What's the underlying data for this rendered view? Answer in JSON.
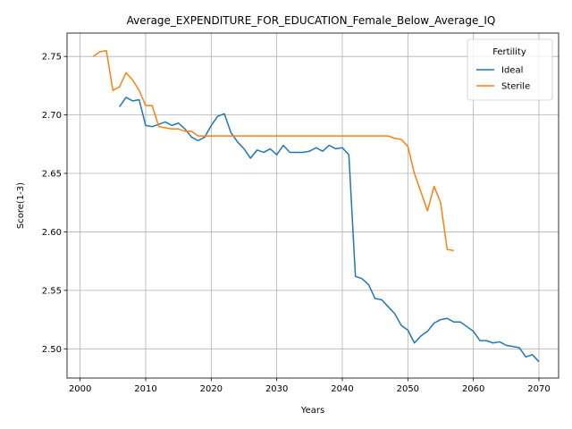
{
  "chart_data": {
    "type": "line",
    "title": "Average_EXPENDITURE_FOR_EDUCATION_Female_Below_Average_IQ",
    "xlabel": "Years",
    "ylabel": "Score(1-3)",
    "xlim": [
      1998,
      2073
    ],
    "ylim": [
      2.475,
      2.77
    ],
    "xticks": [
      2000,
      2010,
      2020,
      2030,
      2040,
      2050,
      2060,
      2070
    ],
    "yticks": [
      2.5,
      2.55,
      2.6,
      2.65,
      2.7,
      2.75
    ],
    "grid": true,
    "legend": {
      "title": "Fertility",
      "placement": "top-right"
    },
    "series": [
      {
        "name": "Ideal",
        "color": "#1f77b4",
        "x": [
          2006,
          2007,
          2008,
          2009,
          2010,
          2011,
          2012,
          2013,
          2014,
          2015,
          2016,
          2017,
          2018,
          2019,
          2020,
          2021,
          2022,
          2023,
          2024,
          2025,
          2026,
          2027,
          2028,
          2029,
          2030,
          2031,
          2032,
          2033,
          2034,
          2035,
          2036,
          2037,
          2038,
          2039,
          2040,
          2041,
          2042,
          2043,
          2044,
          2045,
          2046,
          2047,
          2048,
          2049,
          2050,
          2051,
          2052,
          2053,
          2054,
          2055,
          2056,
          2057,
          2058,
          2059,
          2060,
          2061,
          2062,
          2063,
          2064,
          2065,
          2066,
          2067,
          2068,
          2069,
          2070
        ],
        "y": [
          2.707,
          2.715,
          2.712,
          2.713,
          2.691,
          2.69,
          2.692,
          2.694,
          2.691,
          2.693,
          2.688,
          2.681,
          2.678,
          2.681,
          2.691,
          2.699,
          2.701,
          2.685,
          2.677,
          2.671,
          2.663,
          2.67,
          2.668,
          2.671,
          2.666,
          2.674,
          2.668,
          2.668,
          2.668,
          2.669,
          2.672,
          2.669,
          2.674,
          2.671,
          2.672,
          2.666,
          2.562,
          2.56,
          2.555,
          2.543,
          2.542,
          2.536,
          2.53,
          2.52,
          2.516,
          2.505,
          2.511,
          2.515,
          2.522,
          2.525,
          2.526,
          2.523,
          2.523,
          2.519,
          2.515,
          2.507,
          2.507,
          2.505,
          2.506,
          2.503,
          2.502,
          2.501,
          2.493,
          2.495,
          2.489
        ]
      },
      {
        "name": "Sterile",
        "color": "#ff7f0e",
        "x": [
          2002,
          2003,
          2004,
          2005,
          2006,
          2007,
          2008,
          2009,
          2010,
          2011,
          2012,
          2013,
          2014,
          2015,
          2016,
          2017,
          2018,
          2019,
          2020,
          2021,
          2022,
          2023,
          2024,
          2025,
          2026,
          2027,
          2028,
          2029,
          2030,
          2031,
          2032,
          2033,
          2034,
          2035,
          2036,
          2037,
          2038,
          2039,
          2040,
          2041,
          2042,
          2043,
          2044,
          2045,
          2046,
          2047,
          2048,
          2049,
          2050,
          2051,
          2052,
          2053,
          2054,
          2055,
          2056,
          2057
        ],
        "y": [
          2.75,
          2.754,
          2.755,
          2.721,
          2.724,
          2.736,
          2.73,
          2.721,
          2.708,
          2.708,
          2.69,
          2.689,
          2.688,
          2.688,
          2.686,
          2.686,
          2.682,
          2.682,
          2.682,
          2.682,
          2.682,
          2.682,
          2.682,
          2.682,
          2.682,
          2.682,
          2.682,
          2.682,
          2.682,
          2.682,
          2.682,
          2.682,
          2.682,
          2.682,
          2.682,
          2.682,
          2.682,
          2.682,
          2.682,
          2.682,
          2.682,
          2.682,
          2.682,
          2.682,
          2.682,
          2.682,
          2.68,
          2.679,
          2.673,
          2.65,
          2.634,
          2.618,
          2.639,
          2.625,
          2.585,
          2.584
        ]
      }
    ]
  }
}
